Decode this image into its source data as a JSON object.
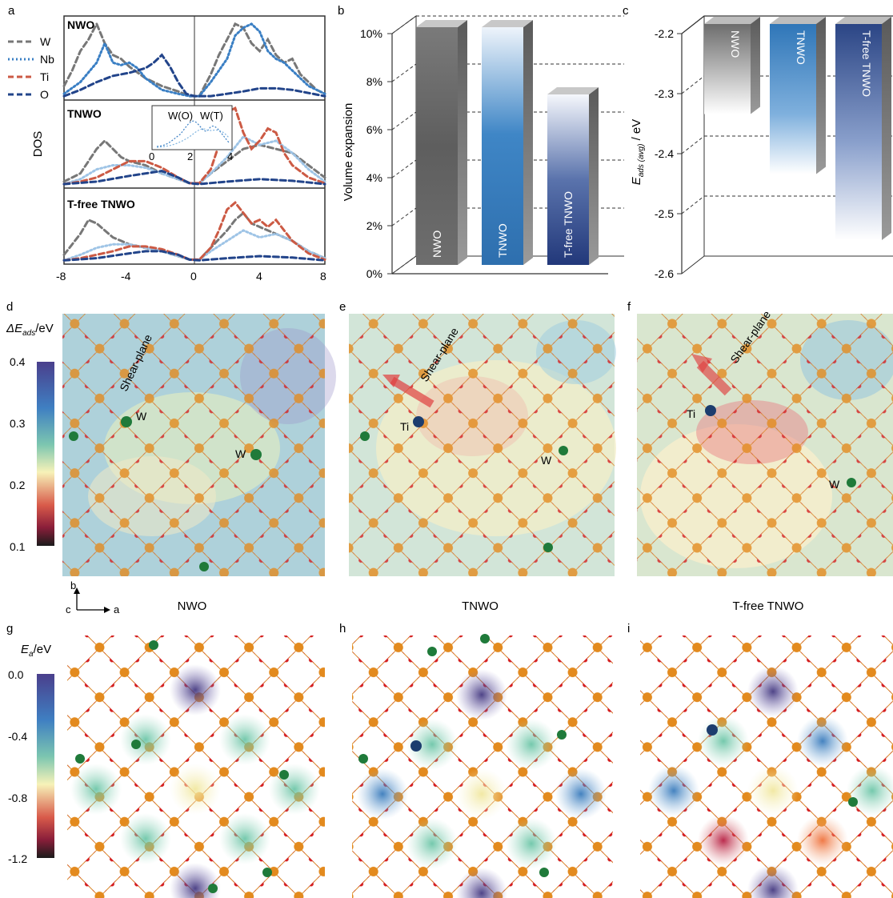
{
  "panel_labels": [
    "a",
    "b",
    "c",
    "d",
    "e",
    "f",
    "g",
    "h",
    "i"
  ],
  "colors": {
    "W": "#777777",
    "Nb": "#3a7fc4",
    "Ti": "#cc5a44",
    "O": "#22448a",
    "Nb_light": "#9ec4e6"
  },
  "chart_data": [
    {
      "panel": "a",
      "type": "line",
      "ylabel": "DOS",
      "x_ticks": [
        "-8",
        "-4",
        "0",
        "4",
        "8"
      ],
      "xlim": [
        -8,
        8
      ],
      "legend": {
        "placement": "left",
        "entries": [
          "W",
          "Nb",
          "Ti",
          "O"
        ]
      },
      "subpanels": [
        {
          "name": "NWO",
          "series": [
            {
              "name": "W",
              "x": [
                -8,
                -7.5,
                -7,
                -6.5,
                -6,
                -5.5,
                -5,
                -4.5,
                -4,
                -3,
                -2,
                -1,
                -0.3,
                0.3,
                1,
                1.5,
                2,
                2.5,
                3,
                3.5,
                4,
                4.5,
                5,
                5.5,
                6,
                6.5,
                7,
                7.5,
                8
              ],
              "y": [
                0.15,
                0.35,
                0.6,
                0.75,
                0.95,
                0.7,
                0.55,
                0.5,
                0.4,
                0.25,
                0.15,
                0.08,
                0.02,
                0.02,
                0.3,
                0.55,
                0.75,
                0.95,
                0.9,
                0.7,
                0.6,
                0.75,
                0.55,
                0.45,
                0.5,
                0.3,
                0.2,
                0.1,
                0.05
              ]
            },
            {
              "name": "Nb",
              "x": [
                -8,
                -7,
                -6,
                -5.5,
                -5,
                -4.5,
                -4,
                -3.5,
                -3,
                -2,
                -1,
                -0.3,
                0.3,
                1,
                2,
                2.5,
                3,
                3.5,
                4,
                4.5,
                5,
                5.5,
                6,
                7,
                8
              ],
              "y": [
                0.05,
                0.2,
                0.45,
                0.7,
                0.45,
                0.42,
                0.45,
                0.38,
                0.25,
                0.1,
                0.05,
                0.02,
                0.02,
                0.2,
                0.5,
                0.8,
                0.9,
                0.95,
                0.85,
                0.6,
                0.5,
                0.45,
                0.35,
                0.15,
                0.05
              ]
            },
            {
              "name": "O",
              "x": [
                -8,
                -7,
                -6,
                -5,
                -4,
                -3,
                -2.5,
                -2,
                -1.5,
                -1,
                -0.5,
                0,
                1,
                2,
                3,
                4,
                5,
                6,
                7,
                8
              ],
              "y": [
                0.02,
                0.1,
                0.2,
                0.28,
                0.32,
                0.38,
                0.45,
                0.55,
                0.4,
                0.2,
                0.05,
                0.02,
                0.02,
                0.05,
                0.08,
                0.12,
                0.12,
                0.1,
                0.06,
                0.02
              ]
            }
          ]
        },
        {
          "name": "TNWO",
          "inset": {
            "labels": [
              "W(O)",
              "W(T)"
            ],
            "x_ticks": [
              "0",
              "2",
              "4"
            ]
          },
          "series": [
            {
              "name": "W",
              "x": [
                -8,
                -7,
                -6.5,
                -6,
                -5.5,
                -5,
                -4.5,
                -4,
                -3,
                -2,
                -1,
                -0.3,
                0.3,
                1,
                2,
                3,
                4,
                5,
                6,
                7,
                8
              ],
              "y": [
                0.05,
                0.15,
                0.3,
                0.45,
                0.55,
                0.45,
                0.35,
                0.3,
                0.25,
                0.15,
                0.08,
                0.03,
                0.03,
                0.15,
                0.3,
                0.45,
                0.5,
                0.45,
                0.4,
                0.25,
                0.1
              ]
            },
            {
              "name": "Nb",
              "x": [
                -8,
                -7,
                -6,
                -5,
                -4,
                -3,
                -2,
                -1,
                -0.3,
                0.3,
                1,
                2,
                3,
                4,
                5,
                6,
                7,
                8
              ],
              "y": [
                0.02,
                0.08,
                0.2,
                0.25,
                0.25,
                0.22,
                0.15,
                0.08,
                0.03,
                0.03,
                0.15,
                0.35,
                0.6,
                0.5,
                0.55,
                0.4,
                0.2,
                0.05
              ]
            },
            {
              "name": "Ti",
              "x": [
                -8,
                -7,
                -6,
                -5,
                -4,
                -3,
                -2,
                -1,
                -0.3,
                0.3,
                1,
                1.5,
                2,
                2.5,
                3,
                3.5,
                4,
                4.5,
                5,
                5.5,
                6,
                7,
                8
              ],
              "y": [
                0.02,
                0.05,
                0.1,
                0.2,
                0.3,
                0.3,
                0.22,
                0.1,
                0.03,
                0.03,
                0.2,
                0.5,
                0.9,
                0.95,
                0.65,
                0.45,
                0.55,
                0.7,
                0.65,
                0.4,
                0.25,
                0.1,
                0.03
              ]
            },
            {
              "name": "O",
              "x": [
                -8,
                -6,
                -4,
                -3,
                -2,
                -1,
                -0.3,
                0.3,
                2,
                4,
                6,
                8
              ],
              "y": [
                0.02,
                0.05,
                0.12,
                0.15,
                0.18,
                0.1,
                0.03,
                0.02,
                0.05,
                0.08,
                0.06,
                0.02
              ]
            }
          ]
        },
        {
          "name": "T-free TNWO",
          "series": [
            {
              "name": "W",
              "x": [
                -8,
                -7.5,
                -7,
                -6.5,
                -6,
                -5.5,
                -5,
                -4.5,
                -4,
                -3,
                -2,
                -1,
                -0.3,
                0.3,
                1,
                2,
                2.5,
                3,
                3.5,
                4,
                4.5,
                5,
                6,
                7,
                8
              ],
              "y": [
                0.1,
                0.25,
                0.4,
                0.6,
                0.55,
                0.45,
                0.35,
                0.3,
                0.25,
                0.2,
                0.15,
                0.08,
                0.03,
                0.03,
                0.2,
                0.45,
                0.6,
                0.7,
                0.55,
                0.5,
                0.45,
                0.4,
                0.3,
                0.15,
                0.05
              ]
            },
            {
              "name": "Nb",
              "x": [
                -8,
                -7,
                -6,
                -5,
                -4,
                -3,
                -2,
                -1,
                -0.3,
                0.3,
                1,
                2,
                3,
                4,
                5,
                6,
                7,
                8
              ],
              "y": [
                0.02,
                0.1,
                0.2,
                0.25,
                0.25,
                0.2,
                0.15,
                0.08,
                0.03,
                0.03,
                0.15,
                0.3,
                0.45,
                0.35,
                0.4,
                0.3,
                0.15,
                0.05
              ]
            },
            {
              "name": "Ti",
              "x": [
                -8,
                -7,
                -6,
                -5,
                -4,
                -3,
                -2,
                -1,
                -0.3,
                0.3,
                1,
                1.5,
                2,
                2.5,
                3,
                3.5,
                4,
                4.5,
                5,
                5.5,
                6,
                7,
                8
              ],
              "y": [
                0.02,
                0.05,
                0.1,
                0.15,
                0.22,
                0.22,
                0.18,
                0.1,
                0.03,
                0.03,
                0.2,
                0.45,
                0.75,
                0.85,
                0.7,
                0.55,
                0.6,
                0.5,
                0.6,
                0.45,
                0.3,
                0.12,
                0.03
              ]
            },
            {
              "name": "O",
              "x": [
                -8,
                -6,
                -4,
                -3,
                -2,
                -1,
                -0.3,
                0.3,
                2,
                4,
                6,
                8
              ],
              "y": [
                0.02,
                0.05,
                0.12,
                0.15,
                0.15,
                0.1,
                0.03,
                0.02,
                0.05,
                0.08,
                0.06,
                0.02
              ]
            }
          ]
        }
      ]
    },
    {
      "panel": "b",
      "type": "bar",
      "categories": [
        "NWO",
        "TNWO",
        "T-free TNWO"
      ],
      "values": [
        10.0,
        10.0,
        7.2
      ],
      "ylabel": "Volume expansion",
      "ylim": [
        0,
        10
      ],
      "y_ticks": [
        "0%",
        "2%",
        "4%",
        "6%",
        "8%",
        "10%"
      ],
      "grid": true
    },
    {
      "panel": "c",
      "type": "bar",
      "categories": [
        "NWO",
        "TNWO",
        "T-free TNWO"
      ],
      "values": [
        -2.35,
        -2.45,
        -2.56
      ],
      "ylabel": "E",
      "ylabel_sub": "ads (avg)",
      "ylabel_unit": " / eV",
      "ylim": [
        -2.6,
        -2.2
      ],
      "y_ticks": [
        "-2.2",
        "-2.3",
        "-2.4",
        "-2.5",
        "-2.6"
      ],
      "grid": true
    },
    {
      "panel": "d-f",
      "type": "heatmap",
      "colorbar": {
        "label": "ΔE",
        "label_sub": "ads",
        "label_unit": "/eV",
        "ticks": [
          "0.4",
          "0.3",
          "0.2",
          "0.1"
        ],
        "range": [
          0.1,
          0.4
        ]
      },
      "maps": [
        {
          "panel": "d",
          "title": "NWO",
          "labels": [
            "Shear-plane",
            "W",
            "W"
          ]
        },
        {
          "panel": "e",
          "title": "TNWO",
          "labels": [
            "Shear-plane",
            "Ti",
            "W"
          ]
        },
        {
          "panel": "f",
          "title": "T-free TNWO",
          "labels": [
            "Shear-plane",
            "Ti",
            "W"
          ]
        }
      ],
      "axes_indicator": {
        "up": "b",
        "right": "a",
        "origin": "c"
      }
    },
    {
      "panel": "g-i",
      "type": "heatmap",
      "colorbar": {
        "label": "E",
        "label_sub": "a",
        "label_unit": "/eV",
        "ticks": [
          "0.0",
          "-0.4",
          "-0.8",
          "-1.2"
        ],
        "range": [
          -1.2,
          0.0
        ]
      },
      "maps": [
        {
          "panel": "g",
          "values": [
            -0.05,
            -0.35,
            -0.4,
            -0.35,
            -0.62,
            -0.42,
            -0.4,
            -0.42,
            -0.05
          ]
        },
        {
          "panel": "h",
          "values": [
            -0.05,
            -0.38,
            -0.25,
            -0.45,
            -0.6,
            -0.42,
            -0.25,
            -0.42,
            -0.05
          ]
        },
        {
          "panel": "i",
          "values": [
            -0.05,
            -0.25,
            -0.45,
            -0.45,
            -0.62,
            -0.92,
            -0.25,
            -1.05,
            -0.05
          ]
        }
      ]
    }
  ]
}
